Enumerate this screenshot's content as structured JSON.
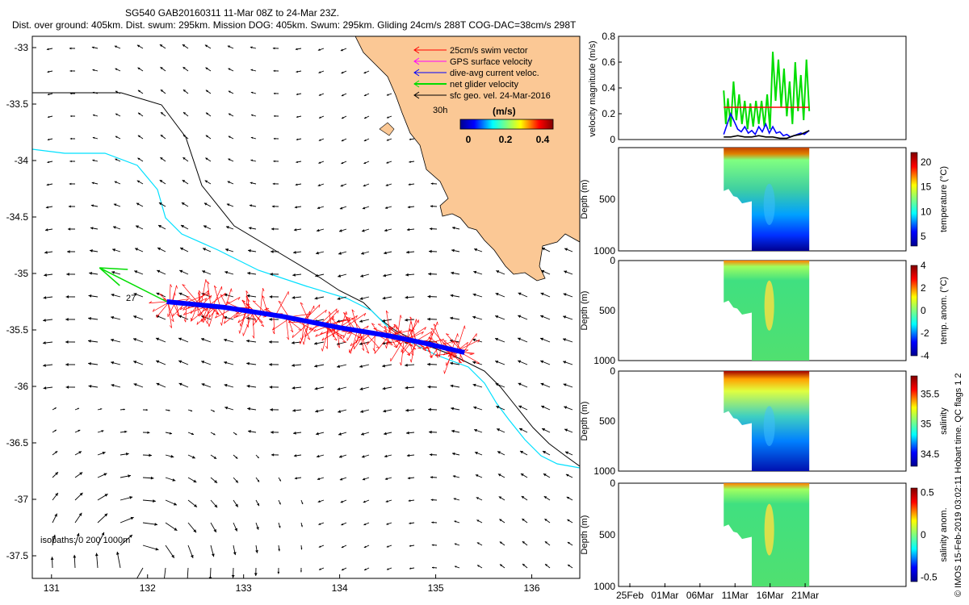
{
  "header": {
    "line1": "SG540 GAB20160311 11-Mar 08Z to 24-Mar 23Z.",
    "line2": "Dist. over ground: 405km. Dist. swum: 295km. Mission DOG: 405km. Swum: 295km. Gliding 24cm/s 288T COG-DAC=38cm/s 298T"
  },
  "colors": {
    "land": "#fbc895",
    "swim": "#ff0000",
    "gps": "#ff00ff",
    "dac": "#0000ff",
    "net": "#00dd00",
    "geo": "#000000",
    "isobath200": "#000000",
    "isobath1000": "#00e0ff"
  },
  "map_legend": {
    "items": [
      {
        "label": "25cm/s swim vector",
        "color": "#ff0000"
      },
      {
        "label": "GPS surface velocity",
        "color": "#ff00ff"
      },
      {
        "label": "dive-avg current veloc.",
        "color": "#0000ff"
      },
      {
        "label": "net glider velocity",
        "color": "#00dd00"
      },
      {
        "label": "sfc geo. vel. 24-Mar-2016",
        "color": "#000000"
      }
    ],
    "duration": "30h",
    "colorbar_label": "(m/s)",
    "colorbar_ticks": [
      "0",
      "0.2",
      "0.4"
    ],
    "net_label": "27",
    "isobaths": "isobaths: 0   200  1000m"
  },
  "footer_note": "© IMOS 15-Feb-2019 03:02:11 Hobart time. QC flags 1  2",
  "chart_data": [
    {
      "type": "vector-map",
      "x_ticks": [
        "131",
        "132",
        "133",
        "134",
        "135",
        "136"
      ],
      "y_ticks": [
        "-33",
        "-33.5",
        "-34",
        "-34.5",
        "-35",
        "-35.5",
        "-36",
        "-36.5",
        "-37",
        "-37.5"
      ],
      "xlim": [
        130.8,
        136.5
      ],
      "ylim": [
        -37.7,
        -32.9
      ],
      "glider_track": [
        [
          132.2,
          -35.25
        ],
        [
          132.8,
          -35.3
        ],
        [
          133.4,
          -35.38
        ],
        [
          134.0,
          -35.48
        ],
        [
          134.5,
          -35.55
        ],
        [
          134.9,
          -35.62
        ],
        [
          135.3,
          -35.7
        ]
      ],
      "net_vector": {
        "from": [
          132.2,
          -35.25
        ],
        "to": [
          131.5,
          -34.95
        ]
      }
    },
    {
      "type": "line",
      "ylabel": "velocity magnitude (m/s)",
      "y_ticks": [
        "0",
        "0.2",
        "0.4",
        "0.6",
        "0.8"
      ],
      "ylim": [
        0,
        0.8
      ],
      "xlim": [
        0,
        41
      ],
      "x_ticks": [
        "25Feb",
        "01Mar",
        "06Mar",
        "11Mar",
        "16Mar",
        "21Mar"
      ],
      "series": [
        {
          "color": "#00dd00",
          "x": [
            15.0,
            15.3,
            15.6,
            16.0,
            16.4,
            16.8,
            17.2,
            17.6,
            18.0,
            18.4,
            18.8,
            19.2,
            19.6,
            20.0,
            20.4,
            20.8,
            21.2,
            21.6,
            22.0,
            22.4,
            22.8,
            23.2,
            23.6,
            24.0,
            24.4,
            24.8,
            25.2,
            25.6,
            26.0,
            26.4,
            26.8,
            27.2
          ],
          "values": [
            0.38,
            0.12,
            0.32,
            0.1,
            0.45,
            0.15,
            0.35,
            0.12,
            0.3,
            0.08,
            0.28,
            0.1,
            0.3,
            0.12,
            0.3,
            0.1,
            0.35,
            0.08,
            0.68,
            0.3,
            0.62,
            0.25,
            0.55,
            0.18,
            0.45,
            0.12,
            0.6,
            0.22,
            0.5,
            0.15,
            0.62,
            0.22
          ]
        },
        {
          "color": "#ff0000",
          "x": [
            15.0,
            27.2
          ],
          "values": [
            0.25,
            0.25
          ]
        },
        {
          "color": "#0000ff",
          "x": [
            15.0,
            15.5,
            16.0,
            16.5,
            17.0,
            17.5,
            18.0,
            18.5,
            19.0,
            19.5,
            20.0,
            20.5,
            21.0,
            21.5,
            22.0,
            22.5,
            23.0,
            23.5,
            24.0,
            24.5,
            25.0,
            25.5,
            26.0,
            26.5,
            27.2
          ],
          "values": [
            0.04,
            0.12,
            0.2,
            0.14,
            0.08,
            0.06,
            0.1,
            0.05,
            0.07,
            0.04,
            0.1,
            0.06,
            0.12,
            0.05,
            0.1,
            0.05,
            0.06,
            0.03,
            0.04,
            0.02,
            0.03,
            0.04,
            0.05,
            0.04,
            0.07
          ]
        },
        {
          "color": "#000000",
          "x": [
            15.0,
            16.0,
            17.0,
            18.0,
            19.0,
            20.0,
            21.0,
            22.0,
            23.0,
            24.0,
            25.0,
            26.0,
            27.2
          ],
          "values": [
            0.02,
            0.02,
            0.03,
            0.02,
            0.02,
            0.03,
            0.02,
            0.02,
            0.01,
            0.01,
            0.03,
            0.04,
            0.07
          ]
        }
      ]
    },
    {
      "type": "heatmap",
      "ylabel": "Depth (m)",
      "y_ticks": [
        "500",
        "1000"
      ],
      "colorbar_label": "temperature (°C)",
      "colorbar_ticks": [
        "5",
        "10",
        "15",
        "20"
      ],
      "colormap": "jet"
    },
    {
      "type": "heatmap",
      "ylabel": "Depth (m)",
      "y_ticks": [
        "0",
        "500",
        "1000"
      ],
      "colorbar_label": "temp. anom. (°C)",
      "colorbar_ticks": [
        "-4",
        "-2",
        "0",
        "2",
        "4"
      ],
      "colormap": "jet"
    },
    {
      "type": "heatmap",
      "ylabel": "Depth (m)",
      "y_ticks": [
        "0",
        "500",
        "1000"
      ],
      "colorbar_label": "salinity",
      "colorbar_ticks": [
        "34.5",
        "35",
        "35.5"
      ],
      "colormap": "jet"
    },
    {
      "type": "heatmap",
      "ylabel": "Depth (m)",
      "y_ticks": [
        "0",
        "500",
        "1000"
      ],
      "colorbar_label": "salinity anom.",
      "colorbar_ticks": [
        "-0.5",
        "0",
        "0.5"
      ],
      "colormap": "jet"
    }
  ]
}
